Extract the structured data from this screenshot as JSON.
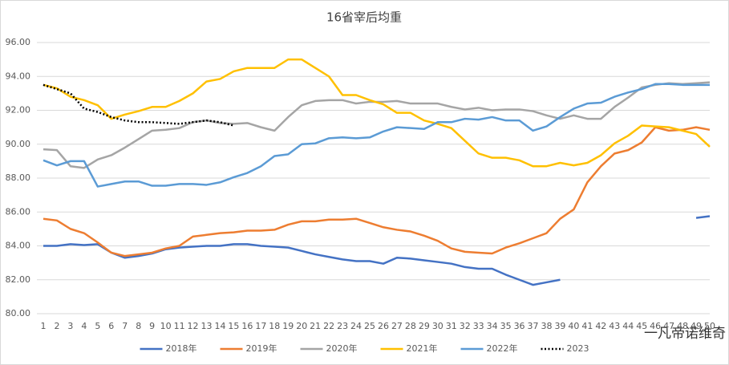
{
  "chart_data": {
    "type": "line",
    "title": "16省宰后均重",
    "categories": [
      "1",
      "2",
      "3",
      "4",
      "5",
      "6",
      "7",
      "8",
      "9",
      "10",
      "11",
      "12",
      "13",
      "14",
      "15",
      "16",
      "17",
      "18",
      "19",
      "20",
      "21",
      "22",
      "23",
      "24",
      "25",
      "26",
      "27",
      "28",
      "29",
      "30",
      "31",
      "32",
      "33",
      "34",
      "35",
      "36",
      "37",
      "38",
      "39",
      "40",
      "41",
      "42",
      "43",
      "44",
      "45",
      "46",
      "47",
      "48",
      "49",
      "50"
    ],
    "series": [
      {
        "name": "2018年",
        "color": "#4472c4",
        "values": [
          84.0,
          84.0,
          84.1,
          84.05,
          84.1,
          83.6,
          83.3,
          83.4,
          83.55,
          83.8,
          83.9,
          83.95,
          84.0,
          84.0,
          84.1,
          84.1,
          84.0,
          83.95,
          83.9,
          83.7,
          83.5,
          83.35,
          83.2,
          83.1,
          83.1,
          82.95,
          83.3,
          83.25,
          83.15,
          83.05,
          82.95,
          82.75,
          82.65,
          82.65,
          82.3,
          82.0,
          81.7,
          81.85,
          82.0,
          null,
          null,
          null,
          null,
          null,
          null,
          null,
          null,
          null,
          85.65,
          85.75
        ]
      },
      {
        "name": "2019年",
        "color": "#ed7d31",
        "values": [
          85.6,
          85.5,
          85.0,
          84.75,
          84.2,
          83.6,
          83.4,
          83.5,
          83.6,
          83.85,
          84.0,
          84.55,
          84.65,
          84.75,
          84.8,
          84.9,
          84.9,
          84.95,
          85.25,
          85.45,
          85.45,
          85.55,
          85.55,
          85.6,
          85.35,
          85.1,
          84.95,
          84.85,
          84.6,
          84.3,
          83.85,
          83.65,
          83.6,
          83.55,
          83.9,
          84.15,
          84.45,
          84.75,
          85.6,
          86.15,
          87.75,
          88.7,
          89.45,
          89.65,
          90.1,
          91.0,
          90.8,
          90.85,
          91.0,
          90.85
        ]
      },
      {
        "name": "2020年",
        "color": "#a5a5a5",
        "values": [
          89.7,
          89.65,
          88.7,
          88.6,
          89.1,
          89.35,
          89.8,
          90.3,
          90.8,
          90.85,
          90.95,
          91.3,
          91.4,
          91.25,
          91.2,
          91.25,
          91.0,
          90.8,
          91.6,
          92.3,
          92.55,
          92.6,
          92.6,
          92.4,
          92.5,
          92.5,
          92.55,
          92.4,
          92.4,
          92.4,
          92.2,
          92.05,
          92.15,
          92.0,
          92.05,
          92.05,
          91.95,
          91.7,
          91.5,
          91.7,
          91.5,
          91.5,
          92.2,
          92.75,
          93.35,
          93.5,
          93.6,
          93.55,
          93.6,
          93.65
        ]
      },
      {
        "name": "2021年",
        "color": "#ffc000",
        "values": [
          93.5,
          93.3,
          92.8,
          92.6,
          92.3,
          91.5,
          91.75,
          91.95,
          92.2,
          92.2,
          92.55,
          93.0,
          93.7,
          93.85,
          94.3,
          94.5,
          94.5,
          94.5,
          95.0,
          95.0,
          94.5,
          94.0,
          92.9,
          92.9,
          92.6,
          92.35,
          91.85,
          91.85,
          91.4,
          91.2,
          90.95,
          90.2,
          89.45,
          89.2,
          89.2,
          89.05,
          88.7,
          88.7,
          88.9,
          88.75,
          88.9,
          89.35,
          90.05,
          90.5,
          91.1,
          91.05,
          91.0,
          90.8,
          90.6,
          89.85
        ]
      },
      {
        "name": "2022年",
        "color": "#5b9bd5",
        "values": [
          89.05,
          88.75,
          89.0,
          89.0,
          87.5,
          87.65,
          87.8,
          87.8,
          87.55,
          87.55,
          87.65,
          87.65,
          87.6,
          87.75,
          88.05,
          88.3,
          88.7,
          89.3,
          89.4,
          90.0,
          90.05,
          90.35,
          90.4,
          90.35,
          90.4,
          90.75,
          91.0,
          90.95,
          90.9,
          91.3,
          91.3,
          91.5,
          91.45,
          91.6,
          91.4,
          91.4,
          90.8,
          91.05,
          91.6,
          92.1,
          92.4,
          92.45,
          92.8,
          93.05,
          93.25,
          93.55,
          93.55,
          93.5,
          93.5,
          93.5
        ]
      },
      {
        "name": "2023",
        "color": "#000000",
        "line_style": "dotted",
        "values": [
          93.5,
          93.25,
          93.0,
          92.1,
          91.9,
          91.6,
          91.4,
          91.3,
          91.3,
          91.25,
          91.2,
          91.3,
          91.4,
          91.3,
          91.1,
          null,
          null,
          null,
          null,
          null,
          null,
          null,
          null,
          null,
          null,
          null,
          null,
          null,
          null,
          null,
          null,
          null,
          null,
          null,
          null,
          null,
          null,
          null,
          null,
          null,
          null,
          null,
          null,
          null,
          null,
          null,
          null,
          null,
          null,
          null
        ]
      }
    ],
    "ylim": [
      80,
      96
    ],
    "yticks": [
      {
        "value": 80,
        "label": "80.00"
      },
      {
        "value": 82,
        "label": "82.00"
      },
      {
        "value": 84,
        "label": "84.00"
      },
      {
        "value": 86,
        "label": "86.00"
      },
      {
        "value": 88,
        "label": "88.00"
      },
      {
        "value": 90,
        "label": "90.00"
      },
      {
        "value": 92,
        "label": "92.00"
      },
      {
        "value": 94,
        "label": "94.00"
      },
      {
        "value": 96,
        "label": "96.00"
      }
    ],
    "grid": true,
    "legend": "bottom",
    "watermark": "一凡帝诺维奇"
  }
}
